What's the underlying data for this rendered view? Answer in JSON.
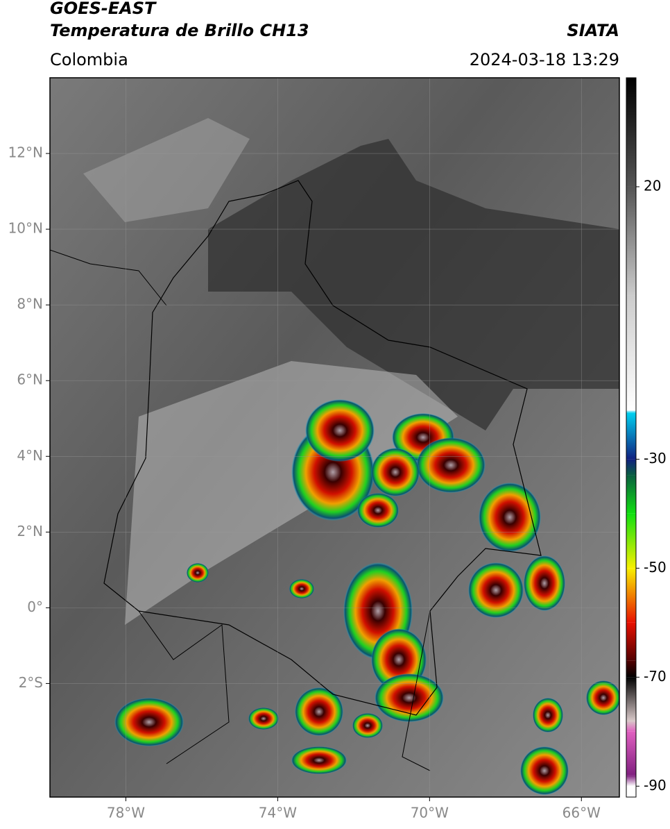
{
  "map": {
    "title": "GOES-EAST",
    "subtitle": "Temperatura de Brillo CH13",
    "source": "SIATA",
    "region": "Colombia",
    "datetime": "2024-03-18 13:29",
    "xlim": [
      -80,
      -65
    ],
    "ylim": [
      -5,
      14
    ],
    "xticks": [
      {
        "value": -78,
        "label": "78°W"
      },
      {
        "value": -74,
        "label": "74°W"
      },
      {
        "value": -70,
        "label": "70°W"
      },
      {
        "value": -66,
        "label": "66°W"
      }
    ],
    "yticks": [
      {
        "value": 12,
        "label": "12°N"
      },
      {
        "value": 10,
        "label": "10°N"
      },
      {
        "value": 8,
        "label": "8°N"
      },
      {
        "value": 6,
        "label": "6°N"
      },
      {
        "value": 4,
        "label": "4°N"
      },
      {
        "value": 2,
        "label": "2°N"
      },
      {
        "value": 0,
        "label": "0°"
      },
      {
        "value": -2,
        "label": "2°S"
      }
    ],
    "colorbar": {
      "lim": [
        -92,
        40
      ],
      "ticks": [
        20,
        -30,
        -50,
        -70,
        -90
      ],
      "stops": [
        {
          "value": 40,
          "color": "#000000"
        },
        {
          "value": 20,
          "color": "#555555"
        },
        {
          "value": 0,
          "color": "#cccccc"
        },
        {
          "value": -21,
          "color": "#ffffff"
        },
        {
          "value": -21.5,
          "color": "#00d0f0"
        },
        {
          "value": -30,
          "color": "#102080"
        },
        {
          "value": -33,
          "color": "#0a6040"
        },
        {
          "value": -40,
          "color": "#10e010"
        },
        {
          "value": -50,
          "color": "#f8f000"
        },
        {
          "value": -60,
          "color": "#e81000"
        },
        {
          "value": -67,
          "color": "#500000"
        },
        {
          "value": -70,
          "color": "#000000"
        },
        {
          "value": -78,
          "color": "#d8c8c8"
        },
        {
          "value": -80,
          "color": "#e060c0"
        },
        {
          "value": -88,
          "color": "#802080"
        },
        {
          "value": -90,
          "color": "#ffffff"
        }
      ]
    }
  }
}
